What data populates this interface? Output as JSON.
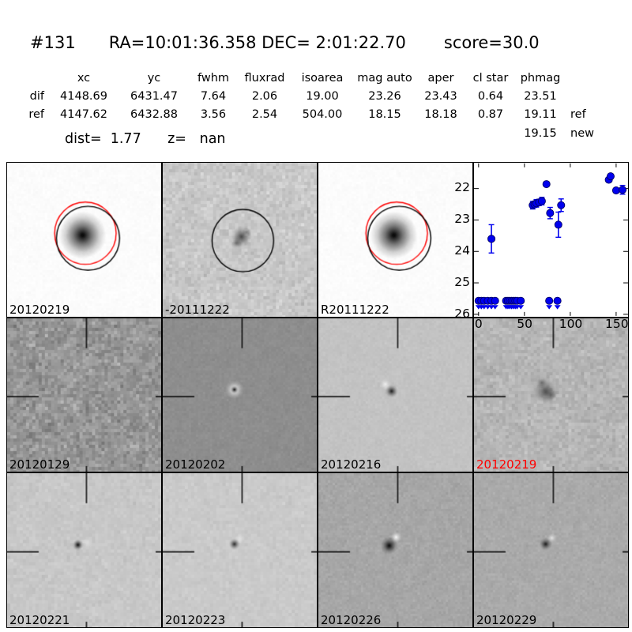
{
  "header": {
    "object_id": "#131",
    "coordinates": "RA=10:01:36.358 DEC= 2:01:22.70",
    "score": "score=30.0"
  },
  "photometry": {
    "columns": [
      "xc",
      "yc",
      "fwhm",
      "fluxrad",
      "isoarea",
      "mag auto",
      "aper",
      "cl star",
      "phmag"
    ],
    "rows": [
      {
        "name": "dif",
        "values": [
          "4148.69",
          "6431.47",
          "7.64",
          "2.06",
          "19.00",
          "23.26",
          "23.43",
          "0.64",
          "23.51"
        ],
        "suffix": ""
      },
      {
        "name": "ref",
        "values": [
          "4147.62",
          "6432.88",
          "3.56",
          "2.54",
          "504.00",
          "18.15",
          "18.18",
          "0.87",
          "19.11"
        ],
        "suffix": "ref"
      },
      {
        "name": "",
        "values": [
          "",
          "",
          "",
          "",
          "",
          "",
          "",
          "",
          "19.15"
        ],
        "suffix": "new"
      }
    ],
    "dist_line": "dist=  1.77      z=   nan"
  },
  "colors": {
    "point_blue": "#0000ee",
    "point_edge": "#000066",
    "red_circle": "#ff0000",
    "black_circle": "#000000",
    "highlight_label": "#ff0000"
  },
  "chart_data": {
    "type": "scatter",
    "title": "",
    "xlabel": "",
    "ylabel": "",
    "xlim": [
      -5,
      163
    ],
    "ylim": [
      21.2,
      26.05
    ],
    "y_axis_inverted_magnitudes": true,
    "xticks": [
      0,
      50,
      100,
      150
    ],
    "yticks": [
      22,
      23,
      24,
      25,
      26
    ],
    "grid": false,
    "legend": "none",
    "series": [
      {
        "name": "detections",
        "marker": "circle-errorbar",
        "color": "#0000ee",
        "points": [
          {
            "x": 14,
            "mag": 23.6,
            "err": 0.45
          },
          {
            "x": 59,
            "mag": 22.53,
            "err": 0.12
          },
          {
            "x": 61,
            "mag": 22.5,
            "err": 0.1
          },
          {
            "x": 63,
            "mag": 22.47,
            "err": 0.12
          },
          {
            "x": 66,
            "mag": 22.44,
            "err": 0.1
          },
          {
            "x": 69,
            "mag": 22.4,
            "err": 0.12
          },
          {
            "x": 74,
            "mag": 21.86,
            "err": 0.07
          },
          {
            "x": 78,
            "mag": 22.78,
            "err": 0.18
          },
          {
            "x": 87,
            "mag": 23.15,
            "err": 0.4
          },
          {
            "x": 90,
            "mag": 22.53,
            "err": 0.2
          },
          {
            "x": 142,
            "mag": 21.72,
            "err": 0.06
          },
          {
            "x": 144,
            "mag": 21.61,
            "err": 0.07
          },
          {
            "x": 150,
            "mag": 22.06,
            "err": 0.06
          },
          {
            "x": 157,
            "mag": 22.04,
            "err": 0.14
          }
        ]
      },
      {
        "name": "upper-limits",
        "marker": "circle-down-arrow",
        "color": "#0000ee",
        "mag": 25.57,
        "x": [
          0,
          3,
          6,
          10,
          14,
          18,
          30,
          32,
          34,
          36,
          38,
          40,
          42,
          46,
          77,
          86
        ]
      }
    ]
  },
  "panels": [
    {
      "label": "20120219",
      "label_color": "#000000",
      "bg": "#fcfcfc",
      "noise": 5,
      "grain": 3,
      "source": "psf",
      "overlays": [
        "red-circle",
        "black-circle"
      ],
      "crosshair": false
    },
    {
      "label": "-20111222",
      "label_color": "#000000",
      "bg": "#c8c8c8",
      "noise": 26,
      "grain": 4,
      "source": "clump",
      "overlays": [
        "black-circle"
      ],
      "crosshair": false
    },
    {
      "label": "R20111222",
      "label_color": "#000000",
      "bg": "#fcfcfc",
      "noise": 5,
      "grain": 3,
      "source": "psf",
      "overlays": [
        "red-circle",
        "black-circle"
      ],
      "crosshair": false
    },
    {
      "label": "20120129",
      "label_color": "#000000",
      "bg": "#969696",
      "noise": 42,
      "grain": 4,
      "source": "faint",
      "overlays": [],
      "crosshair": true
    },
    {
      "label": "20120202",
      "label_color": "#000000",
      "bg": "#8e8e8e",
      "noise": 9,
      "grain": 3,
      "source": "dot-white-ring",
      "overlays": [],
      "crosshair": true
    },
    {
      "label": "20120216",
      "label_color": "#000000",
      "bg": "#c3c3c3",
      "noise": 8,
      "grain": 3,
      "source": "dipole-nw",
      "overlays": [],
      "crosshair": true
    },
    {
      "label": "20120219",
      "label_color": "#ff0000",
      "bg": "#b6b6b6",
      "noise": 24,
      "grain": 4,
      "source": "clump-large",
      "overlays": [],
      "crosshair": true
    },
    {
      "label": "20120221",
      "label_color": "#000000",
      "bg": "#c8c8c8",
      "noise": 13,
      "grain": 4,
      "source": "dipole-e",
      "overlays": [],
      "crosshair": true
    },
    {
      "label": "20120223",
      "label_color": "#000000",
      "bg": "#cacaca",
      "noise": 11,
      "grain": 4,
      "source": "dipole-ne",
      "overlays": [],
      "crosshair": true
    },
    {
      "label": "20120226",
      "label_color": "#000000",
      "bg": "#a7a7a7",
      "noise": 13,
      "grain": 3,
      "source": "dipole-ne-strong",
      "overlays": [],
      "crosshair": true
    },
    {
      "label": "20120229",
      "label_color": "#000000",
      "bg": "#aaaaaa",
      "noise": 12,
      "grain": 3,
      "source": "dipole-ne2",
      "overlays": [],
      "crosshair": true
    }
  ]
}
